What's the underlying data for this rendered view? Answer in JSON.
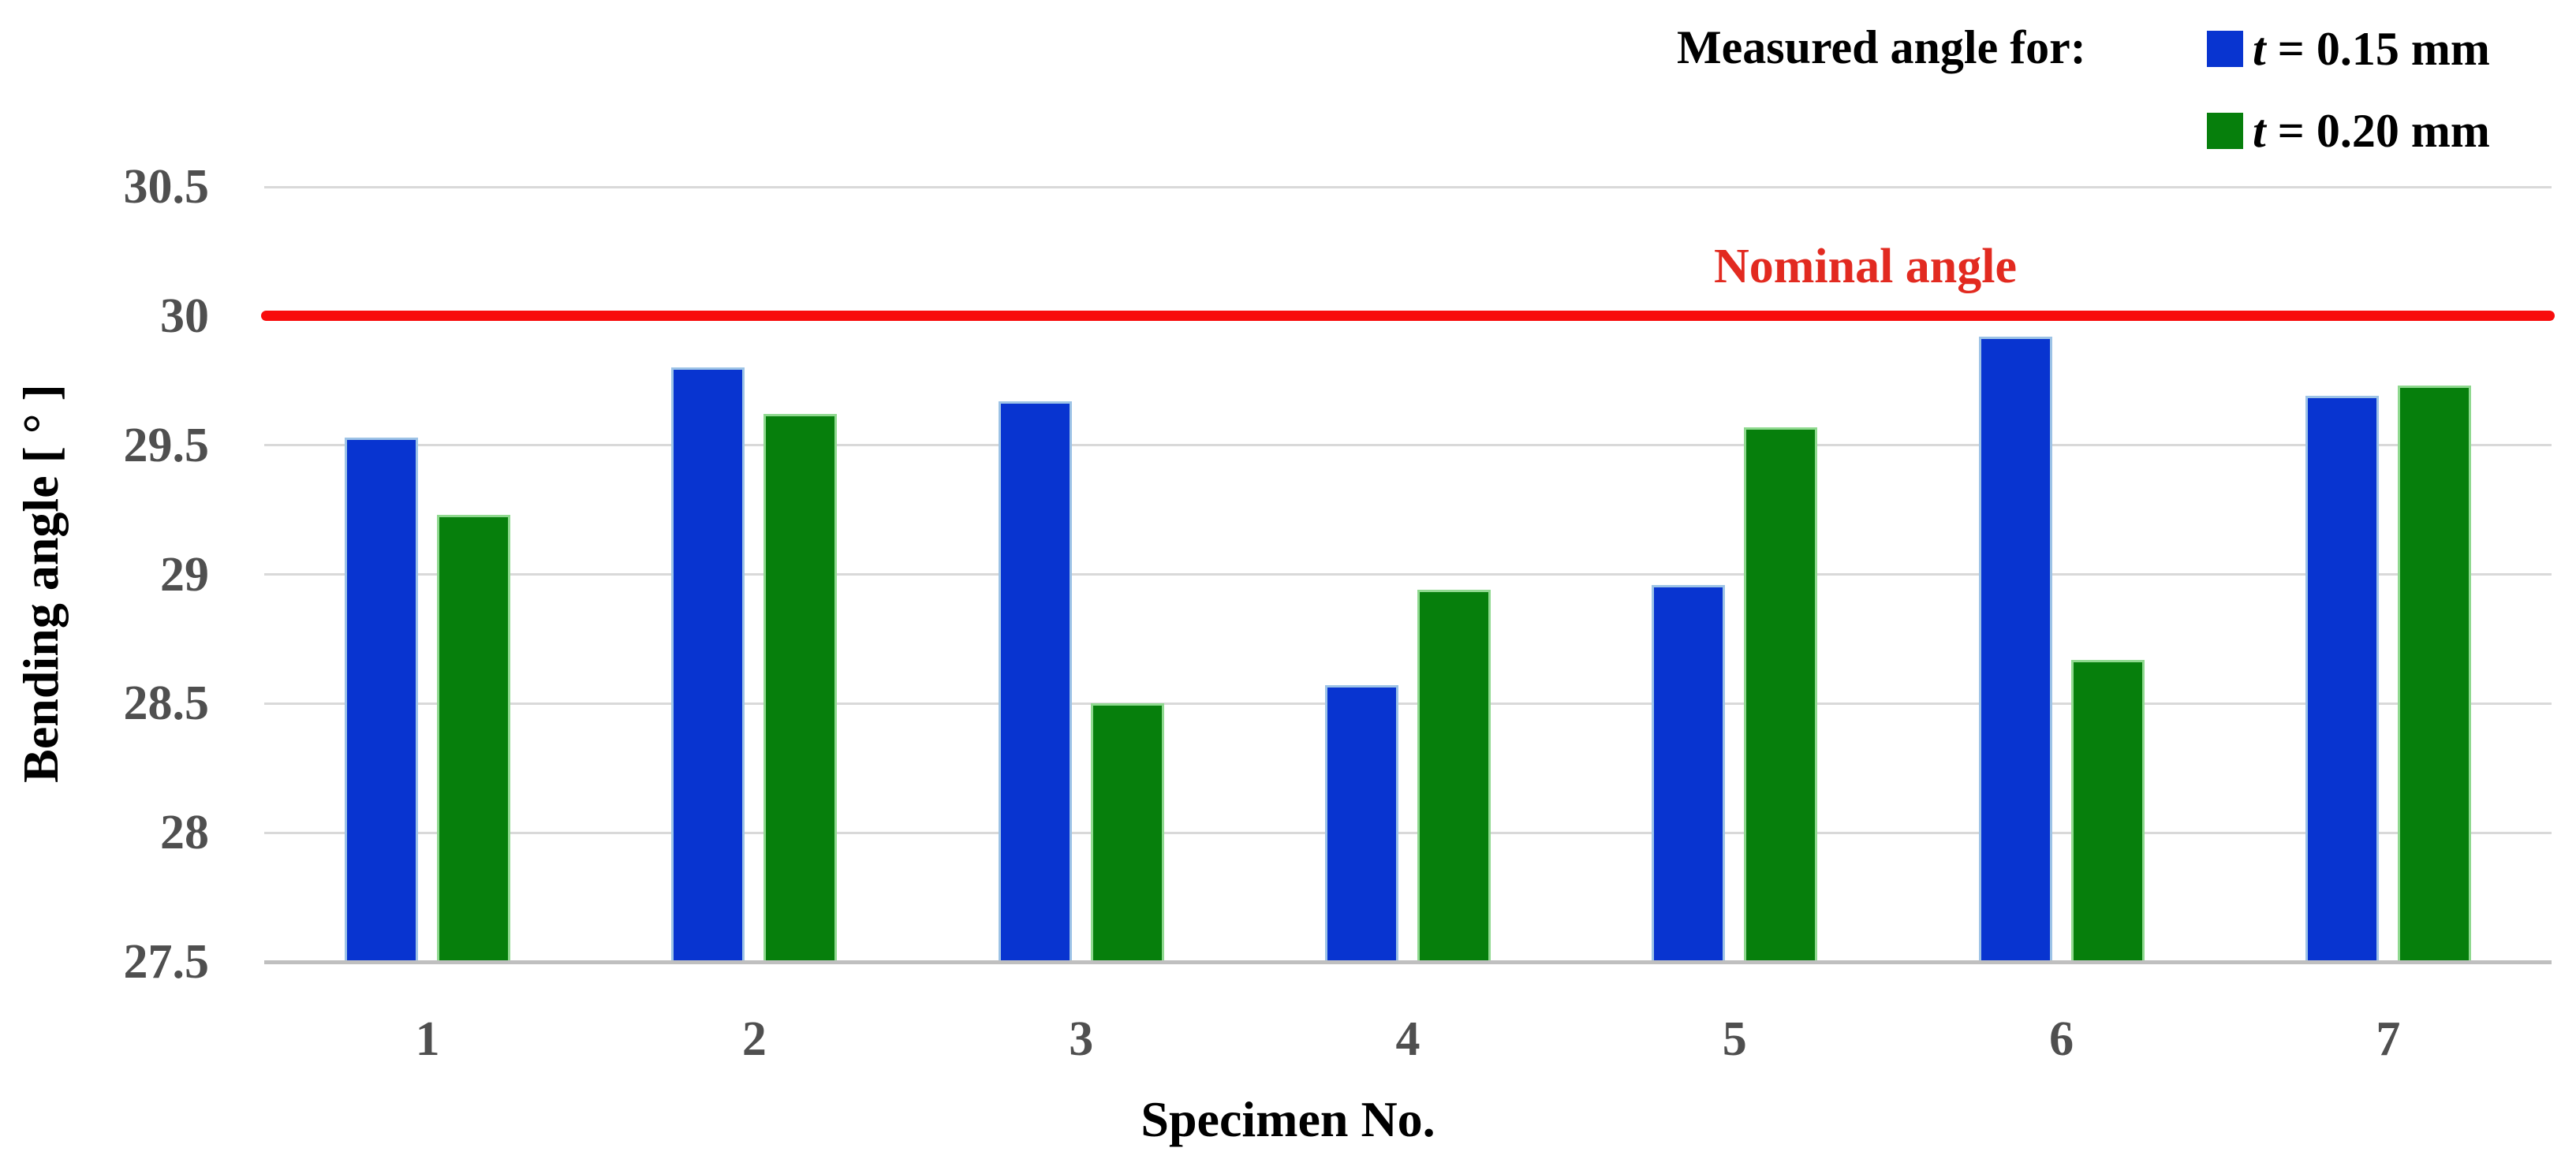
{
  "chart_data": {
    "type": "bar",
    "title": "",
    "categories": [
      "1",
      "2",
      "3",
      "4",
      "5",
      "6",
      "7"
    ],
    "series": [
      {
        "name": "t = 0.15 mm",
        "color": "#0834d0",
        "edge_color": "#9dc3e6",
        "values": [
          29.53,
          29.8,
          29.67,
          28.57,
          28.96,
          29.92,
          29.69
        ]
      },
      {
        "name": "t = 0.20 mm",
        "color": "#067f0c",
        "edge_color": "#8fd98f",
        "values": [
          29.23,
          29.62,
          28.5,
          28.94,
          29.57,
          28.67,
          29.73
        ]
      }
    ],
    "legend_title": "Measured angle for:",
    "legend_position": "top-right",
    "xlabel": "Specimen No.",
    "ylabel": "Bending angle [ ° ]",
    "ylim": [
      27.5,
      30.5
    ],
    "ytick_step": 0.5,
    "yticks": [
      "30.5",
      "30",
      "29.5",
      "29",
      "28.5",
      "28",
      "27.5"
    ],
    "grid": "horizontal-only",
    "reference_line": {
      "value": 30,
      "label": "Nominal angle",
      "line_color": "#f80d0d",
      "label_color": "#e22a20"
    },
    "axis_colors": {
      "tick_label": "#4f4f4f",
      "gridline": "#d9d9d9",
      "axis_line": "#bfbfbf"
    }
  }
}
